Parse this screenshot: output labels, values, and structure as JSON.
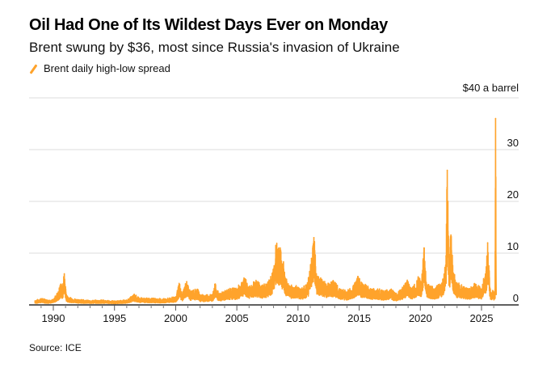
{
  "header": {
    "title": "Oil Had One of Its Wildest Days Ever on Monday",
    "subtitle": "Brent swung by $36, most since Russia's invasion of Ukraine"
  },
  "legend": {
    "label": "Brent daily high-low spread",
    "color": "#ffa32b"
  },
  "footer": {
    "source": "Source: ICE"
  },
  "chart_data": {
    "type": "line",
    "title": "Oil Had One of Its Wildest Days Ever on Monday",
    "subtitle": "Brent swung by $36, most since Russia's invasion of Ukraine",
    "xlabel": "",
    "ylabel": "$ a barrel",
    "y_unit_label": "$40 a barrel",
    "xlim": [
      1988.5,
      2026.2
    ],
    "ylim": [
      0,
      40
    ],
    "y_ticks": [
      0,
      10,
      20,
      30,
      40
    ],
    "y_tick_labels": [
      "0",
      "10",
      "20",
      "30",
      "$40 a barrel"
    ],
    "x_ticks": [
      1990,
      1995,
      2000,
      2005,
      2010,
      2015,
      2020,
      2025
    ],
    "x_tick_labels": [
      "1990",
      "1995",
      "2000",
      "2005",
      "2010",
      "2015",
      "2020",
      "2025"
    ],
    "grid": true,
    "legend_position": "top-left",
    "series": [
      {
        "name": "Brent daily high-low spread",
        "color": "#ffa32b",
        "x": [
          1988.5,
          1989.0,
          1989.5,
          1990.0,
          1990.4,
          1990.6,
          1990.75,
          1990.9,
          1991.05,
          1991.2,
          1991.5,
          1992.0,
          1993.0,
          1994.0,
          1995.0,
          1996.0,
          1996.6,
          1997.0,
          1998.0,
          1999.0,
          2000.0,
          2000.3,
          2000.5,
          2000.9,
          2001.2,
          2001.8,
          2002.0,
          2003.0,
          2003.2,
          2003.5,
          2004.0,
          2004.5,
          2005.0,
          2005.6,
          2006.0,
          2006.6,
          2007.0,
          2007.5,
          2007.9,
          2008.2,
          2008.5,
          2008.8,
          2009.0,
          2009.3,
          2009.8,
          2010.3,
          2010.8,
          2011.1,
          2011.3,
          2011.5,
          2011.8,
          2012.3,
          2012.8,
          2013.5,
          2014.0,
          2014.5,
          2014.9,
          2015.2,
          2015.6,
          2016.0,
          2016.5,
          2017.0,
          2017.6,
          2018.0,
          2018.5,
          2018.9,
          2019.3,
          2019.8,
          2020.1,
          2020.3,
          2020.5,
          2020.8,
          2021.2,
          2021.6,
          2021.9,
          2022.1,
          2022.2,
          2022.35,
          2022.5,
          2022.7,
          2023.0,
          2023.5,
          2024.0,
          2024.5,
          2025.0,
          2025.4,
          2025.5,
          2025.7,
          2026.0,
          2026.1,
          2026.15,
          2026.2
        ],
        "values": [
          0.8,
          1.2,
          0.9,
          1.0,
          2.5,
          4.0,
          3.2,
          6.0,
          2.0,
          1.5,
          1.2,
          1.0,
          0.8,
          0.9,
          0.7,
          0.9,
          2.0,
          1.3,
          1.2,
          1.1,
          1.5,
          4.0,
          2.0,
          4.5,
          2.5,
          3.0,
          1.8,
          2.0,
          4.0,
          2.2,
          2.5,
          3.0,
          3.0,
          5.0,
          3.5,
          4.5,
          3.5,
          4.0,
          6.0,
          11.0,
          10.5,
          8.0,
          5.0,
          3.5,
          3.5,
          3.0,
          4.0,
          9.0,
          13.0,
          6.0,
          5.0,
          4.0,
          4.5,
          3.0,
          2.5,
          3.5,
          5.5,
          4.0,
          3.5,
          3.0,
          3.0,
          2.5,
          3.0,
          2.0,
          3.0,
          4.5,
          3.0,
          5.0,
          4.5,
          11.0,
          4.0,
          3.5,
          3.0,
          4.0,
          5.0,
          9.5,
          26.0,
          8.0,
          13.5,
          6.0,
          4.0,
          3.5,
          3.0,
          4.0,
          3.0,
          7.0,
          12.0,
          3.0,
          2.5,
          3.0,
          36.0,
          2.0
        ]
      }
    ]
  }
}
